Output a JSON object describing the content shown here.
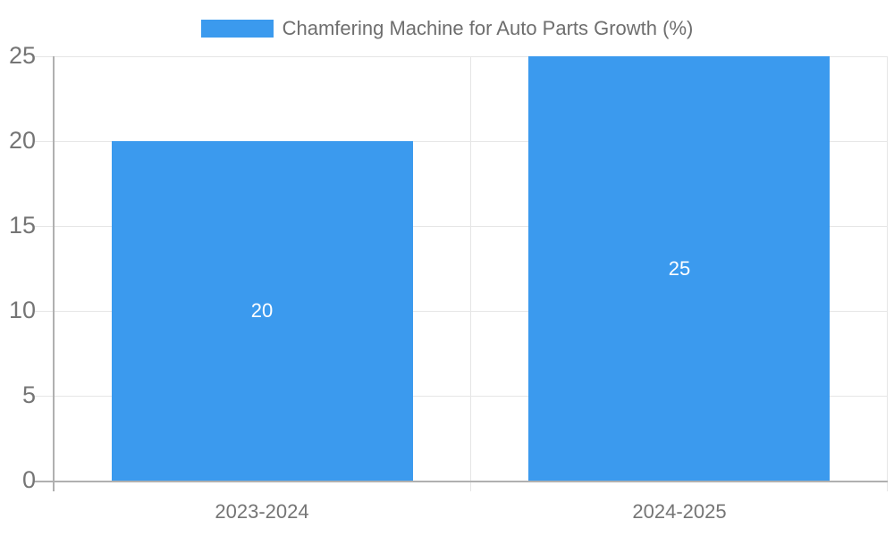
{
  "chart_data": {
    "type": "bar",
    "title": "Chamfering Machine for Auto Parts Growth (%)",
    "categories": [
      "2023-2024",
      "2024-2025"
    ],
    "series": [
      {
        "name": "Chamfering Machine for Auto Parts Growth (%)",
        "values": [
          20,
          25
        ]
      }
    ],
    "data_labels": [
      "20",
      "25"
    ],
    "xlabel": "",
    "ylabel": "",
    "ylim": [
      0,
      25
    ],
    "yticks": [
      0,
      5,
      10,
      15,
      20,
      25
    ],
    "grid": true,
    "legend_position": "top-center",
    "colors": {
      "bar": "#3b9aee",
      "gridline": "#e6e6e6",
      "axis_line": "#b0b0b0",
      "axis_text": "#757575",
      "legend_text": "#6e6e6e",
      "data_label_text": "#ffffff",
      "background": "#ffffff"
    }
  }
}
